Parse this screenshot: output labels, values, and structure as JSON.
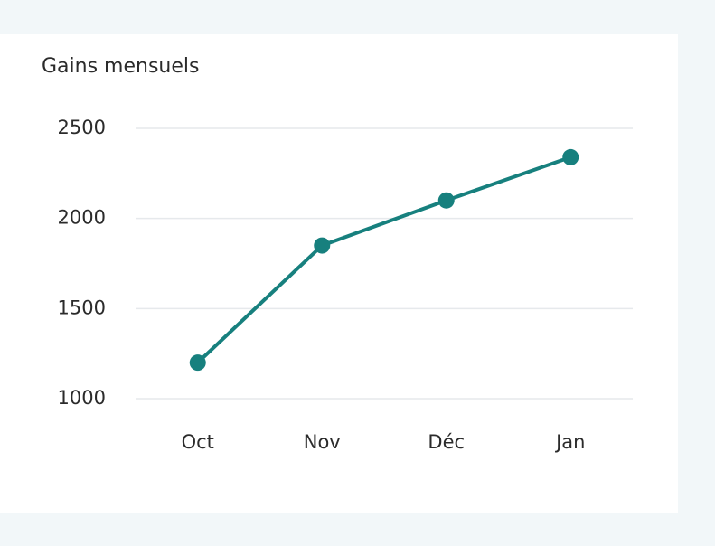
{
  "chart_data": {
    "type": "line",
    "title": "Gains mensuels",
    "categories": [
      "Oct",
      "Nov",
      "Déc",
      "Jan"
    ],
    "values": [
      1200,
      1850,
      2100,
      2340
    ],
    "color": "#17807e",
    "ylim": [
      1000,
      2500
    ],
    "yticks": [
      1000,
      1500,
      2000,
      2500
    ],
    "grid": true
  }
}
